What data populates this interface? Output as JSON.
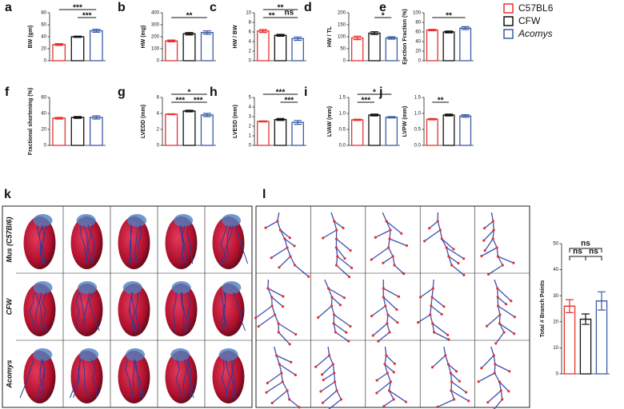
{
  "legend": [
    {
      "name": "C57BL6",
      "color": "#e8312f"
    },
    {
      "name": "CFW",
      "color": "#111111"
    },
    {
      "name": "Acomys",
      "color": "#3a5ba9"
    }
  ],
  "chart_data": [
    {
      "type": "bar",
      "panel": "a",
      "ylabel": "BW (gm)",
      "values": [
        27,
        40,
        50
      ],
      "errors": [
        1.5,
        1,
        2.5
      ],
      "ylim": [
        0,
        80
      ],
      "yticks": [
        0,
        20,
        40,
        60,
        80
      ],
      "annotations": [
        {
          "text": "***",
          "between": [
            1,
            2
          ]
        },
        {
          "text": "***",
          "between": [
            0,
            2
          ]
        }
      ]
    },
    {
      "type": "bar",
      "panel": "b",
      "ylabel": "HW (mg)",
      "values": [
        165,
        225,
        235
      ],
      "errors": [
        8,
        10,
        14
      ],
      "ylim": [
        0,
        400
      ],
      "yticks": [
        0,
        100,
        200,
        300,
        400
      ],
      "annotations": [
        {
          "text": "**",
          "between": [
            0,
            2
          ]
        }
      ]
    },
    {
      "type": "bar",
      "panel": "c",
      "ylabel": "HW / BW",
      "values": [
        6.2,
        5.3,
        4.6
      ],
      "errors": [
        0.3,
        0.2,
        0.35
      ],
      "ylim": [
        0,
        10
      ],
      "yticks": [
        0,
        2,
        4,
        6,
        8,
        10
      ],
      "annotations": [
        {
          "text": "ns",
          "between": [
            1,
            2
          ]
        },
        {
          "text": "**",
          "between": [
            0,
            1
          ]
        },
        {
          "text": "**",
          "between": [
            0,
            2
          ]
        }
      ]
    },
    {
      "type": "bar",
      "panel": "d",
      "ylabel": "HW / TL",
      "values": [
        95,
        115,
        95
      ],
      "errors": [
        7,
        6,
        5
      ],
      "ylim": [
        0,
        200
      ],
      "yticks": [
        0,
        50,
        100,
        150,
        200
      ],
      "annotations": [
        {
          "text": "*",
          "between": [
            1,
            2
          ]
        }
      ]
    },
    {
      "type": "bar",
      "panel": "e",
      "ylabel": "Ejection Fraction (%)",
      "values": [
        64,
        60,
        68
      ],
      "errors": [
        1.5,
        2,
        3
      ],
      "ylim": [
        0,
        100
      ],
      "yticks": [
        0,
        20,
        40,
        60,
        80,
        100
      ],
      "annotations": [
        {
          "text": "**",
          "between": [
            0,
            2
          ]
        }
      ]
    },
    {
      "type": "bar",
      "panel": "f",
      "ylabel": "Fractional shortening (%)",
      "values": [
        34,
        35,
        35
      ],
      "errors": [
        1,
        1.2,
        2
      ],
      "ylim": [
        0,
        60
      ],
      "yticks": [
        0,
        20,
        40,
        60
      ],
      "annotations": []
    },
    {
      "type": "bar",
      "panel": "g",
      "ylabel": "LVEDD (mm)",
      "values": [
        3.9,
        4.3,
        3.8
      ],
      "errors": [
        0.05,
        0.1,
        0.2
      ],
      "ylim": [
        0,
        6
      ],
      "yticks": [
        0,
        2,
        4,
        6
      ],
      "annotations": [
        {
          "text": "***",
          "between": [
            0,
            1
          ]
        },
        {
          "text": "***",
          "between": [
            1,
            2
          ]
        },
        {
          "text": "*",
          "between": [
            0,
            2
          ]
        }
      ]
    },
    {
      "type": "bar",
      "panel": "h",
      "ylabel": "LVESD (mm)",
      "values": [
        2.5,
        2.7,
        2.4
      ],
      "errors": [
        0.05,
        0.1,
        0.2
      ],
      "ylim": [
        0,
        5
      ],
      "yticks": [
        0,
        1,
        2,
        3,
        4,
        5
      ],
      "annotations": [
        {
          "text": "***",
          "between": [
            1,
            2
          ]
        },
        {
          "text": "***",
          "between": [
            0,
            2
          ]
        }
      ]
    },
    {
      "type": "bar",
      "panel": "i",
      "ylabel": "LVAW (mm)",
      "values": [
        0.8,
        0.95,
        0.88
      ],
      "errors": [
        0.02,
        0.03,
        0.02
      ],
      "ylim": [
        0,
        1.5
      ],
      "yticks": [
        {
          "value": 0,
          "label": "0.0"
        },
        0.5,
        {
          "value": 1,
          "label": "1.0"
        },
        1.5
      ],
      "annotations": [
        {
          "text": "***",
          "between": [
            0,
            1
          ]
        },
        {
          "text": "*",
          "between": [
            0,
            2
          ]
        }
      ]
    },
    {
      "type": "bar",
      "panel": "j",
      "ylabel": "LVPW (mm)",
      "values": [
        0.82,
        0.95,
        0.92
      ],
      "errors": [
        0.02,
        0.03,
        0.04
      ],
      "ylim": [
        0,
        1.5
      ],
      "yticks": [
        {
          "value": 0,
          "label": "0.0"
        },
        0.5,
        {
          "value": 1,
          "label": "1.0"
        },
        1.5
      ],
      "annotations": [
        {
          "text": "**",
          "between": [
            0,
            1
          ]
        }
      ]
    },
    {
      "type": "bar",
      "ylabel": "Total # Branch Points",
      "values": [
        26,
        21,
        28
      ],
      "errors": [
        2.5,
        2,
        3.5
      ],
      "ylim": [
        0,
        50
      ],
      "yticks": [
        0,
        10,
        20,
        30,
        40,
        50
      ],
      "annotations": [
        {
          "text": "ns",
          "between": [
            0,
            1
          ]
        },
        {
          "text": "ns",
          "between": [
            1,
            2
          ]
        },
        {
          "text": "ns",
          "between": [
            0,
            2
          ]
        }
      ]
    }
  ],
  "panels": {
    "k": {
      "label": "k",
      "rows": [
        "Mus (C57Bl6)",
        "CFW",
        "Acomys"
      ]
    },
    "l": {
      "label": "l"
    }
  }
}
